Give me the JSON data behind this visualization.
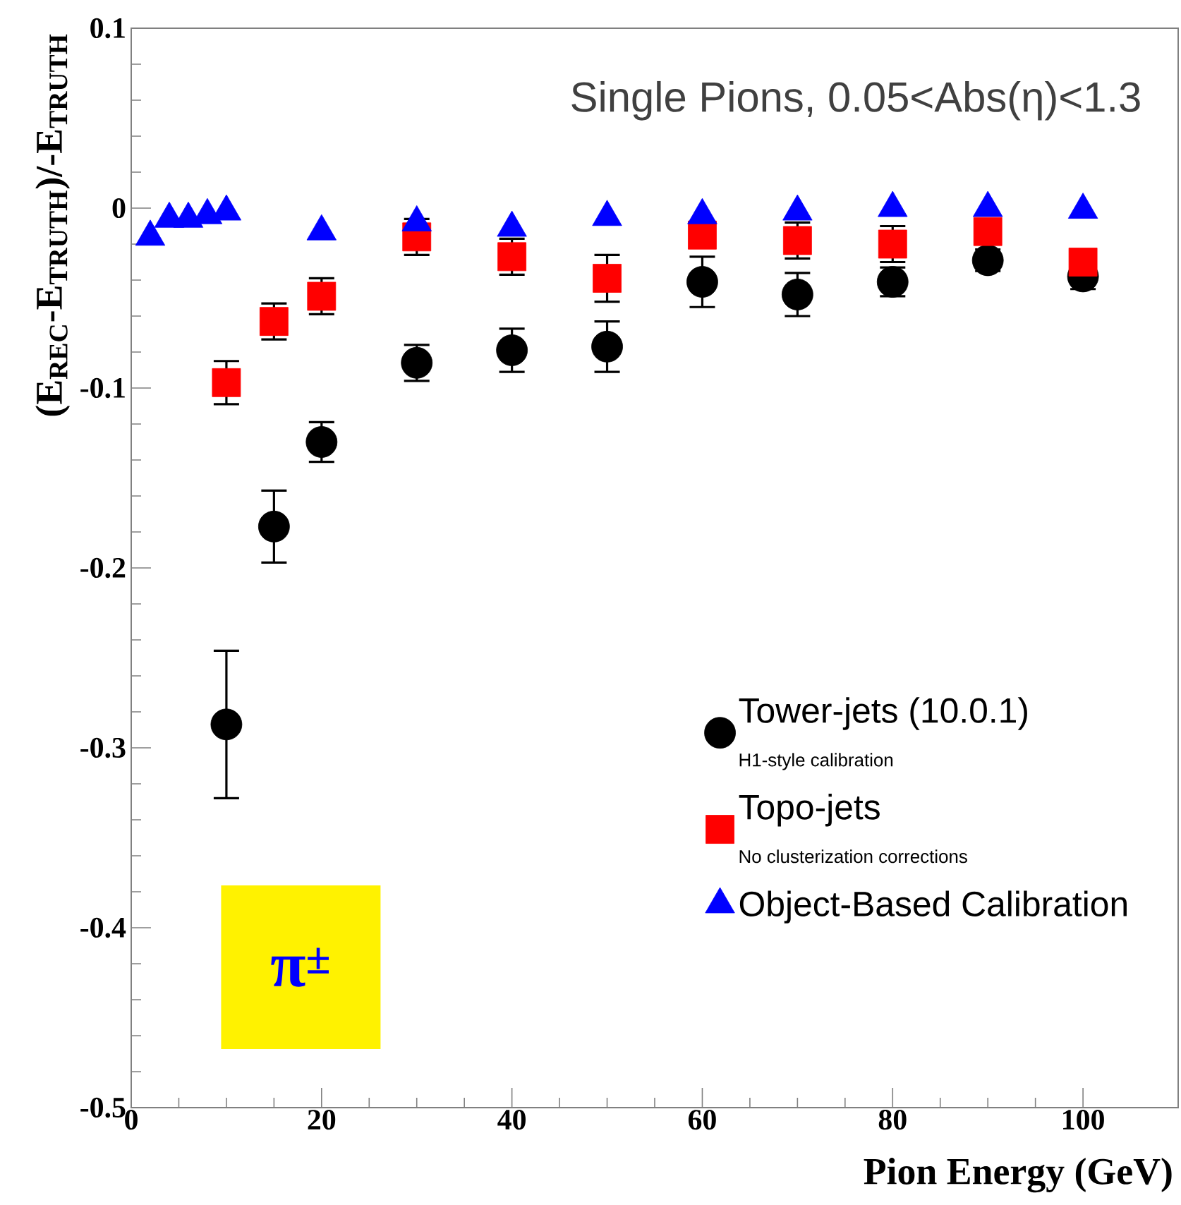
{
  "chart_data": {
    "type": "scatter",
    "title": "Single Pions, 0.05<Abs(η)<1.3",
    "xlabel": "Pion Energy (GeV)",
    "ylabel": "(E$_{REC}$-E$_{TRUTH}$)/-E$_{TRUTH}$",
    "xlim": [
      0,
      110
    ],
    "ylim": [
      -0.5,
      0.1
    ],
    "xticks": [
      0,
      20,
      40,
      60,
      80,
      100
    ],
    "yticks": [
      -0.5,
      -0.4,
      -0.3,
      -0.2,
      -0.1,
      0,
      0.1
    ],
    "legend": "bottom right",
    "annotations": [
      "H1-style calibration",
      "No clusterization corrections",
      "π$^{±}$"
    ],
    "series": [
      {
        "name": "Tower-jets (10.0.1)",
        "color": "#000000",
        "marker": "circle",
        "x": [
          10,
          15,
          20,
          30,
          40,
          50,
          60,
          70,
          80,
          90,
          100
        ],
        "values": [
          -0.287,
          -0.177,
          -0.13,
          -0.086,
          -0.079,
          -0.077,
          -0.041,
          -0.048,
          -0.041,
          -0.029,
          -0.038
        ],
        "errors": [
          0.041,
          0.02,
          0.011,
          0.01,
          0.012,
          0.014,
          0.014,
          0.012,
          0.008,
          0.006,
          0.007
        ]
      },
      {
        "name": "Topo-jets",
        "color": "#ff0000",
        "marker": "square",
        "x": [
          10,
          15,
          20,
          30,
          40,
          50,
          60,
          70,
          80,
          90,
          100
        ],
        "values": [
          -0.097,
          -0.063,
          -0.049,
          -0.016,
          -0.027,
          -0.039,
          -0.015,
          -0.018,
          -0.02,
          -0.013,
          -0.03
        ],
        "errors": [
          0.012,
          0.01,
          0.01,
          0.01,
          0.01,
          0.013,
          null,
          0.01,
          0.01,
          null,
          null
        ]
      },
      {
        "name": "Object-Based Calibration",
        "color": "#0000ff",
        "marker": "triangle",
        "x": [
          2,
          4,
          6,
          8,
          10,
          20,
          30,
          40,
          50,
          60,
          70,
          80,
          90,
          100
        ],
        "values": [
          -0.016,
          -0.006,
          -0.006,
          -0.004,
          -0.002,
          -0.013,
          -0.008,
          -0.011,
          -0.005,
          -0.004,
          -0.002,
          0,
          0,
          -0.001
        ]
      }
    ]
  }
}
